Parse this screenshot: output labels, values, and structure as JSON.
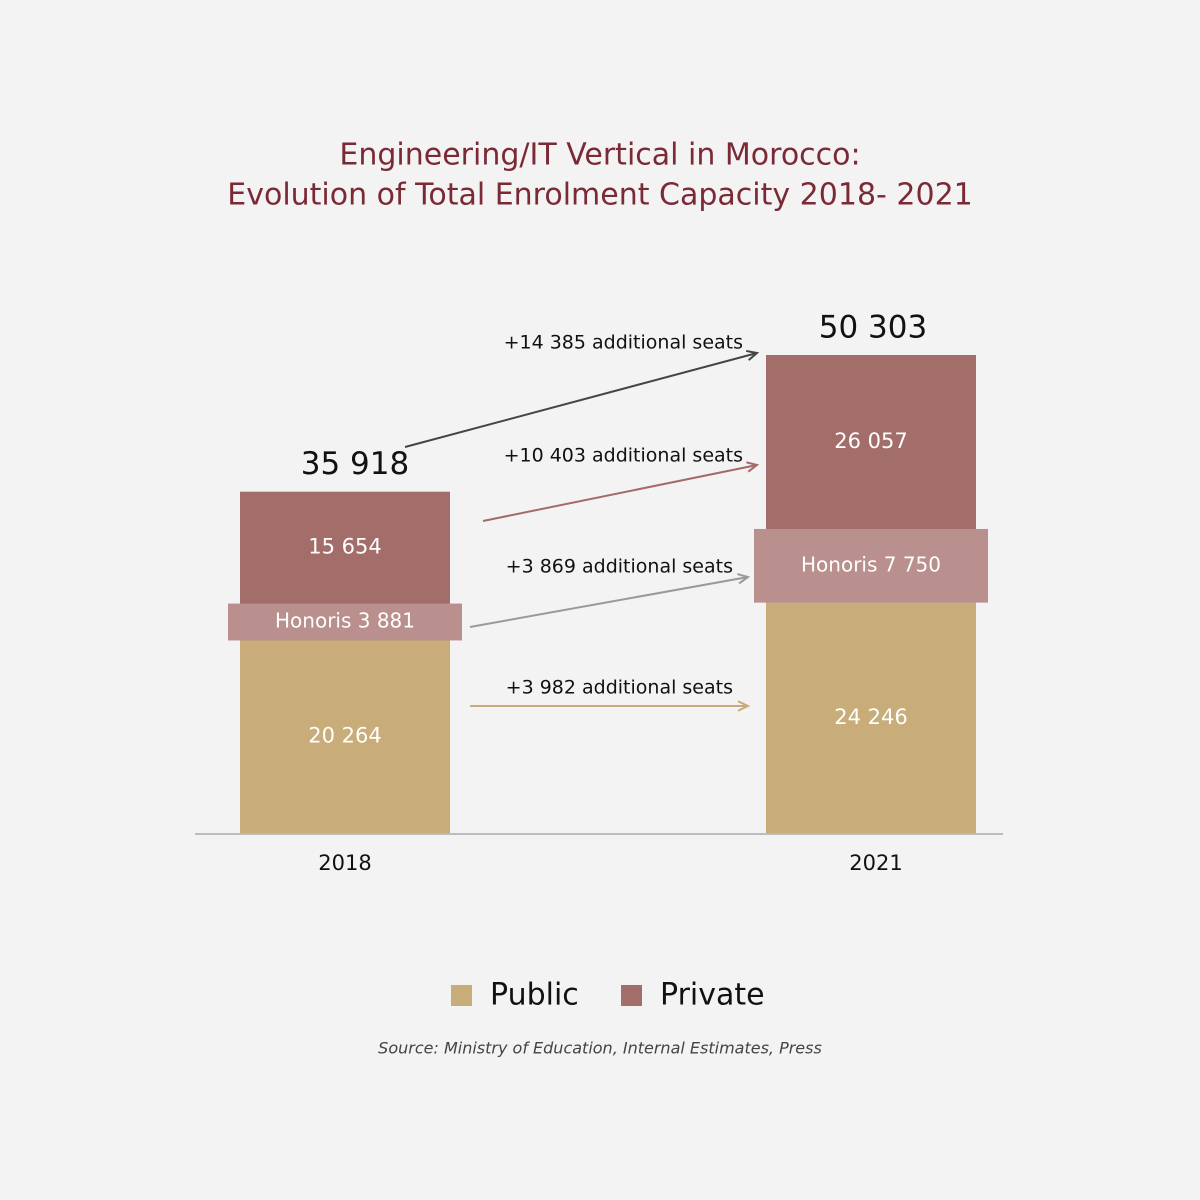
{
  "chart_data": {
    "type": "stacked-bar",
    "title": [
      "Engineering/IT Vertical in Morocco:",
      "Evolution of Total Enrolment Capacity 2018- 2021"
    ],
    "categories": [
      "2018",
      "2021"
    ],
    "series": [
      {
        "name": "Public",
        "color": "#c8ac7a",
        "values": [
          20264,
          24246
        ],
        "value_labels": [
          "20 264",
          "24 246"
        ]
      },
      {
        "name": "Private",
        "color": "#a36d6a",
        "values": [
          15654,
          26057
        ],
        "value_labels": [
          "15 654",
          "26 057"
        ]
      }
    ],
    "honoris": {
      "color": "#b9908d",
      "values": [
        3881,
        7750
      ],
      "value_labels": [
        "Honoris 3 881",
        "Honoris 7 750"
      ]
    },
    "totals": {
      "values": [
        35918,
        50303
      ],
      "value_labels": [
        "35 918",
        "50 303"
      ]
    },
    "annotations": [
      {
        "text": "+14 385 additional seats",
        "color": "#444444"
      },
      {
        "text": "+10 403 additional  seats",
        "color": "#a56a68"
      },
      {
        "text": "+3 869 additional seats",
        "color": "#999999"
      },
      {
        "text": "+3 982 additional seats",
        "color": "#c8ab7a"
      }
    ],
    "source": "Source: Ministry of Education, Internal Estimates, Press"
  }
}
